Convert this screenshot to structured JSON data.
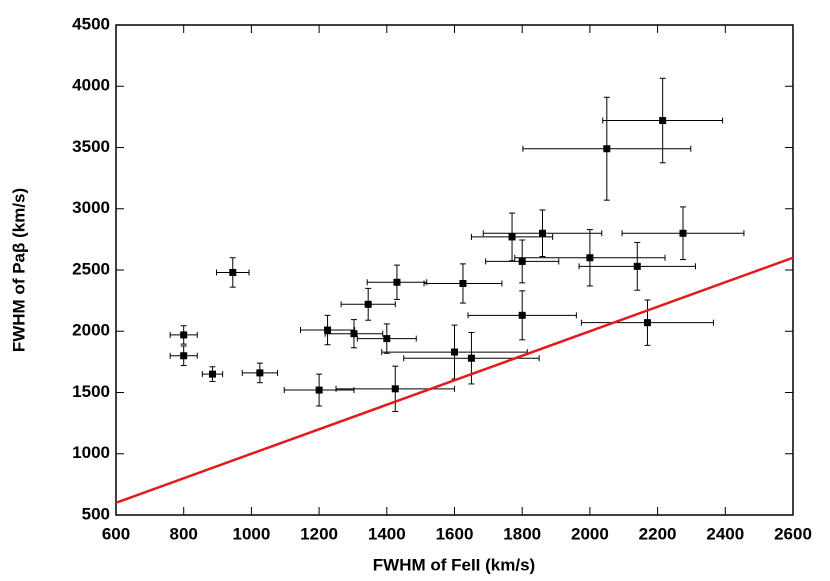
{
  "chart_data": {
    "type": "scatter",
    "xlabel": "FWHM of FeII (km/s)",
    "ylabel": "FWHM of Paβ (km/s)",
    "xlim": [
      600,
      2600
    ],
    "xticks": [
      600,
      800,
      1000,
      1200,
      1400,
      1600,
      1800,
      2000,
      2200,
      2400,
      2600
    ],
    "ylim": [
      500,
      4500
    ],
    "yticks": [
      500,
      1000,
      1500,
      2000,
      2500,
      3000,
      3500,
      4000,
      4500
    ],
    "grid": false,
    "series": [
      {
        "type": "scatter",
        "color": "#000000",
        "x": [
          800,
          800,
          885,
          945,
          1025,
          1200,
          1225,
          1303,
          1400,
          1345,
          1430,
          1425,
          1625,
          1600,
          1650,
          1800,
          1770,
          1860,
          1800,
          2000,
          2140,
          2275,
          2170,
          2050,
          2215
        ],
        "values": [
          1970,
          1800,
          1650,
          2480,
          1660,
          1520,
          2010,
          1980,
          1940,
          2220,
          2400,
          1530,
          2390,
          1830,
          1780,
          2130,
          2770,
          2800,
          2570,
          2600,
          2530,
          2800,
          2070,
          3490,
          3720
        ],
        "xerr": [
          40,
          40,
          30,
          48,
          52,
          103,
          80,
          85,
          87,
          80,
          88,
          175,
          115,
          215,
          200,
          160,
          120,
          175,
          108,
          222,
          172,
          180,
          195,
          248,
          177
        ],
        "yerr": [
          75,
          80,
          60,
          120,
          80,
          130,
          120,
          115,
          120,
          130,
          140,
          185,
          160,
          220,
          210,
          200,
          195,
          190,
          175,
          230,
          195,
          215,
          185,
          420,
          345
        ]
      },
      {
        "type": "line",
        "color": "#e31a1c",
        "x": [
          600,
          2600
        ],
        "values": [
          600,
          2600
        ]
      }
    ]
  }
}
